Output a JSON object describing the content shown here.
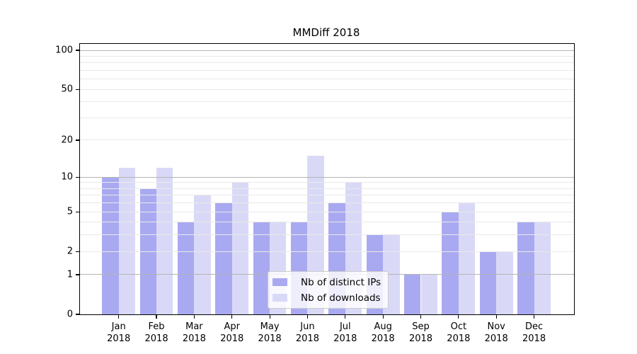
{
  "title": "MMDiff 2018",
  "chart_data": {
    "type": "bar",
    "title": "MMDiff 2018",
    "categories": [
      "Jan 2018",
      "Feb 2018",
      "Mar 2018",
      "Apr 2018",
      "May 2018",
      "Jun 2018",
      "Jul 2018",
      "Aug 2018",
      "Sep 2018",
      "Oct 2018",
      "Nov 2018",
      "Dec 2018"
    ],
    "series": [
      {
        "name": "Nb of distinct IPs",
        "color": "#a9a9f1",
        "values": [
          10,
          8,
          4,
          6,
          4,
          4,
          6,
          3,
          1,
          5,
          2,
          4
        ]
      },
      {
        "name": "Nb of downloads",
        "color": "#d9d9f7",
        "values": [
          12,
          12,
          7,
          9,
          4,
          15,
          9,
          3,
          1,
          6,
          2,
          4
        ]
      }
    ],
    "xlabel": "",
    "ylabel": "",
    "yscale": "log1p",
    "ylim": [
      0,
      112
    ],
    "y_ticks": [
      0,
      1,
      2,
      5,
      10,
      20,
      50,
      100
    ],
    "y_gridlines_major": [
      1,
      10,
      100
    ],
    "y_gridlines_minor": [
      2,
      3,
      4,
      5,
      6,
      7,
      8,
      9,
      20,
      30,
      40,
      50,
      60,
      70,
      80,
      90
    ],
    "grid": "on",
    "legend_position": "lower-center"
  },
  "colors": {
    "background": "#ffffff",
    "bar_distinct_ips": "#a9a9f1",
    "bar_downloads": "#d9d9f7",
    "grid_major": "#b4b4b4",
    "grid_minor": "#e9e9e9",
    "spine": "#000000",
    "legend_border": "#cccccc",
    "text": "#000000"
  }
}
